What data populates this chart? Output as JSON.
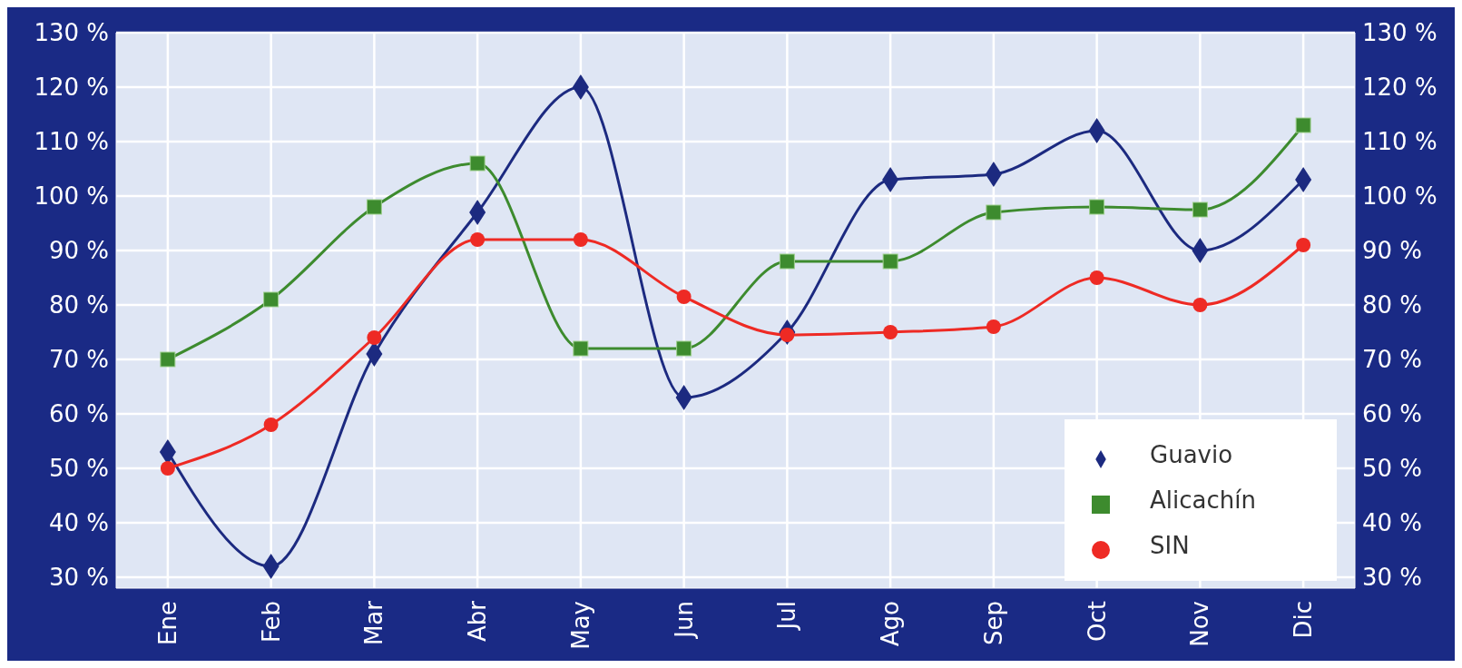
{
  "chart_data": {
    "type": "line",
    "categories": [
      "Ene",
      "Feb",
      "Mar",
      "Abr",
      "May",
      "Jun",
      "Jul",
      "Ago",
      "Sep",
      "Oct",
      "Nov",
      "Dic"
    ],
    "series": [
      {
        "name": "Guavio",
        "color": "#1c2a80",
        "marker": "diamond",
        "values": [
          53,
          32,
          71,
          97,
          120,
          63,
          75,
          103,
          104,
          112,
          90,
          103
        ]
      },
      {
        "name": "Alicachín",
        "color": "#3d8b2e",
        "marker": "square",
        "values": [
          70,
          81,
          98,
          106,
          72,
          72,
          88,
          88,
          97,
          98,
          97.5,
          113
        ]
      },
      {
        "name": "SIN",
        "color": "#ee2a24",
        "marker": "circle",
        "values": [
          50,
          58,
          74,
          92,
          92,
          81.5,
          74.5,
          75,
          76,
          85,
          80,
          91
        ]
      }
    ],
    "ylim": [
      28,
      130
    ],
    "yticks": [
      {
        "value": 30,
        "label": "30 %"
      },
      {
        "value": 40,
        "label": "40 %"
      },
      {
        "value": 50,
        "label": "50 %"
      },
      {
        "value": 60,
        "label": "60 %"
      },
      {
        "value": 70,
        "label": "70 %"
      },
      {
        "value": 80,
        "label": "80 %"
      },
      {
        "value": 90,
        "label": "90 %"
      },
      {
        "value": 100,
        "label": "100 %"
      },
      {
        "value": 110,
        "label": "110 %"
      },
      {
        "value": 120,
        "label": "120 %"
      },
      {
        "value": 130,
        "label": "130 %"
      }
    ],
    "y2lim": [
      28,
      130
    ],
    "y2ticks": [
      {
        "value": 30,
        "label": "30 %"
      },
      {
        "value": 40,
        "label": "40 %"
      },
      {
        "value": 50,
        "label": "50 %"
      },
      {
        "value": 60,
        "label": "60 %"
      },
      {
        "value": 70,
        "label": "70 %"
      },
      {
        "value": 80,
        "label": "80 %"
      },
      {
        "value": 90,
        "label": "90 %"
      },
      {
        "value": 100,
        "label": "100 %"
      },
      {
        "value": 110,
        "label": "110 %"
      },
      {
        "value": 120,
        "label": "120 %"
      },
      {
        "value": 130,
        "label": "130 %"
      }
    ],
    "grid": true,
    "legend": "bottom right",
    "line_style": "solid"
  }
}
